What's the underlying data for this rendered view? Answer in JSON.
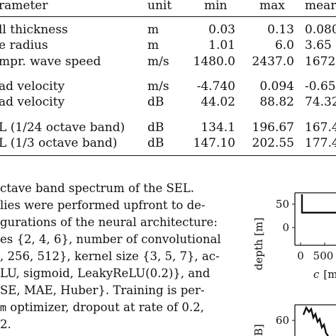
{
  "table": {
    "columns": [
      "rameter",
      "unit",
      "min",
      "max",
      "mear"
    ],
    "rows": [
      {
        "param": "ll thickness",
        "unit": "m",
        "min": "0.03",
        "max": "0.13",
        "mean": "0.080"
      },
      {
        "param": "e radius",
        "unit": "m",
        "min": "1.01",
        "max": "6.0",
        "mean": "3.65"
      },
      {
        "param": "mpr. wave speed",
        "unit": "m/s",
        "min": "1480.0",
        "max": "2437.0",
        "mean": "1672.0"
      },
      {
        "param": "ad velocity",
        "unit": "m/s",
        "min": "-4.740",
        "max": "0.094",
        "mean": "-0.65"
      },
      {
        "param": "ad velocity",
        "unit": "dB",
        "min": "44.02",
        "max": "88.82",
        "mean": "74.32"
      },
      {
        "param": "L (1/24 octave band)",
        "unit": "dB",
        "min": "134.1",
        "max": "196.67",
        "mean": "167.4"
      },
      {
        "param": "L (1/3 octave band)",
        "unit": "dB",
        "min": "147.10",
        "max": "202.55",
        "mean": "177.4"
      }
    ]
  },
  "body": {
    "lines": [
      "ctave band spectrum of the SEL.",
      "lies were performed upfront to de-",
      "gurations of the neural architecture:",
      "es {2, 4, 6}, number of convolutional",
      ", 256, 512}, kernel size {3, 5, 7}, ac-",
      "LU, sigmoid, LeakyReLU(0.2)}, and",
      "SE, MAE, Huber}. Training is per-",
      "optimizer, dropout at rate of 0.2,",
      "2."
    ],
    "line8_prefix": "m"
  },
  "figure_top": {
    "ylabel": "depth [m]",
    "yticks": [
      "50",
      "0"
    ],
    "xticks": [
      "0",
      "500"
    ],
    "xlabel_var": "c",
    "xlabel_unit": "[m"
  },
  "figure_bottom": {
    "ylabel_fragment": "B]",
    "yticks": [
      "60"
    ]
  }
}
